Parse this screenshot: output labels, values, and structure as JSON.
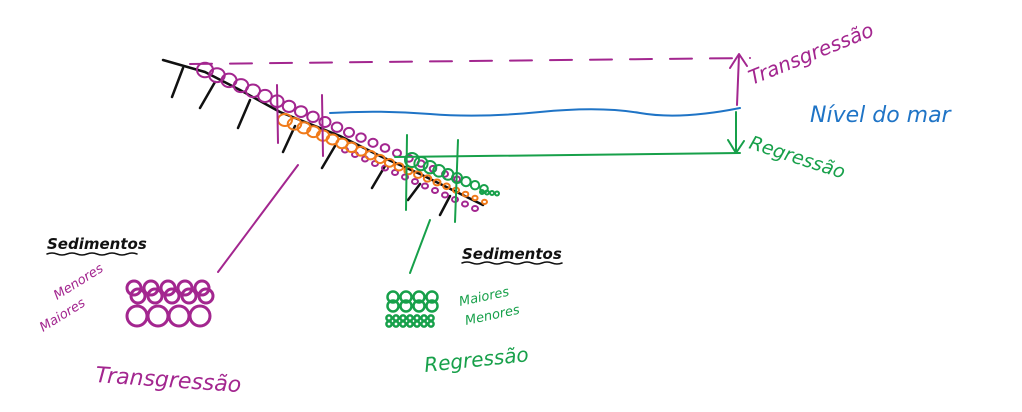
{
  "colors": {
    "transgression": "#a3268f",
    "sea_level": "#1f74c6",
    "regression": "#17a04a",
    "sediment_orange": "#f07a1a",
    "slope": "#111111"
  },
  "labels": {
    "transgression_arrow": "Transgressão",
    "sea_level": "Nível do mar",
    "regression_arrow": "Regressão"
  },
  "transgression_legend": {
    "heading": "Sedimentos",
    "smaller": "Menores",
    "larger": "Maiores",
    "caption": "Transgressão"
  },
  "regression_legend": {
    "heading": "Sedimentos",
    "larger": "Maiores",
    "smaller": "Menores",
    "caption": "Regressão"
  }
}
